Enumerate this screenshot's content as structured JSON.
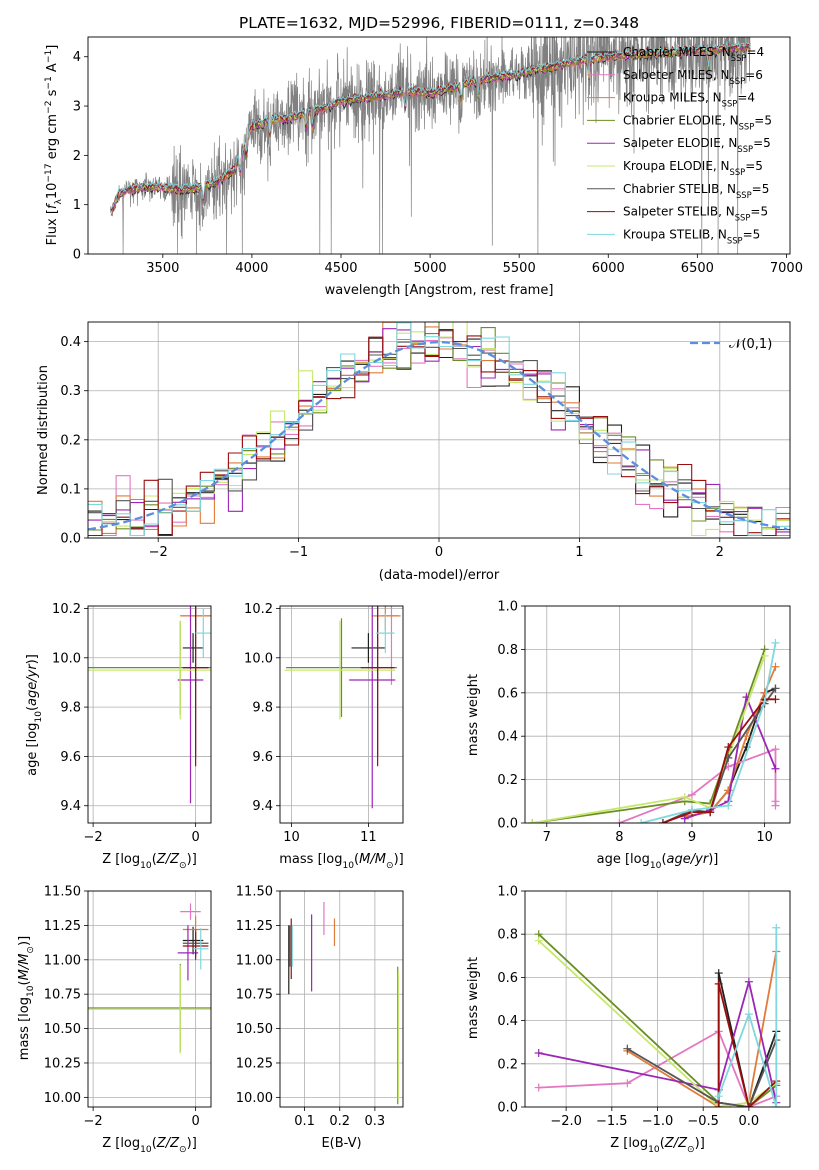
{
  "colors": {
    "Chabrier MILES": "#20201f",
    "Salpeter MILES": "#e377c2",
    "Kroupa MILES": "#e07b39",
    "Chabrier ELODIE": "#6b8e23",
    "Salpeter ELODIE": "#9b26b6",
    "Kroupa ELODIE": "#c5e86c",
    "Chabrier STELIB": "#555555",
    "Salpeter STELIB": "#9a0e0e",
    "Kroupa STELIB": "#7fd7df",
    "data": "#808080",
    "normal": "#5b8ee0"
  },
  "chart_data": [
    {
      "id": "spectrum",
      "type": "line",
      "title": "PLATE=1632, MJD=52996, FIBERID=0111, z=0.348",
      "xlabel": "wavelength [Angstrom, rest frame]",
      "ylabel": "Flux [f_λ 10^-17 erg cm^-2 s^-1 A^-1]",
      "xlim": [
        3080,
        7020
      ],
      "ylim": [
        0,
        4.4
      ],
      "xticks": [
        3500,
        4000,
        4500,
        5000,
        5500,
        6000,
        6500,
        7000
      ],
      "yticks": [
        0,
        1,
        2,
        3,
        4
      ],
      "grid": false,
      "legend_position": "top-right",
      "legend": [
        {
          "pre": "Chabrier MILES, N",
          "sub": "SSP",
          "post": "=4"
        },
        {
          "pre": "Salpeter MILES, N",
          "sub": "SSP",
          "post": "=6"
        },
        {
          "pre": "Kroupa MILES, N",
          "sub": "SSP",
          "post": "=4"
        },
        {
          "pre": "Chabrier ELODIE, N",
          "sub": "SSP",
          "post": "=5"
        },
        {
          "pre": "Salpeter ELODIE, N",
          "sub": "SSP",
          "post": "=5"
        },
        {
          "pre": "Kroupa ELODIE, N",
          "sub": "SSP",
          "post": "=5"
        },
        {
          "pre": "Chabrier STELIB, N",
          "sub": "SSP",
          "post": "=5"
        },
        {
          "pre": "Salpeter STELIB, N",
          "sub": "SSP",
          "post": "=5"
        },
        {
          "pre": "Kroupa STELIB, N",
          "sub": "SSP",
          "post": "=5"
        }
      ],
      "model_continuum": {
        "x": [
          3210,
          3250,
          3300,
          3400,
          3500,
          3600,
          3700,
          3800,
          3900,
          3950,
          4000,
          4100,
          4200,
          4300,
          4400,
          4500,
          4600,
          4700,
          4800,
          4900,
          5000,
          5100,
          5200,
          5300,
          5400,
          5500,
          5600,
          5700,
          5800,
          5900,
          6000,
          6200,
          6400,
          6600,
          6800
        ],
        "y": [
          0.85,
          1.2,
          1.3,
          1.35,
          1.35,
          1.3,
          1.35,
          1.45,
          1.7,
          2.1,
          2.6,
          2.7,
          2.75,
          2.85,
          2.95,
          3.1,
          3.15,
          3.2,
          3.25,
          3.3,
          3.25,
          3.35,
          3.45,
          3.55,
          3.6,
          3.65,
          3.75,
          3.8,
          3.9,
          3.95,
          4.0,
          4.05,
          4.1,
          4.15,
          4.2
        ]
      }
    },
    {
      "id": "residuals",
      "type": "histogram",
      "xlabel": "(data-model)/error",
      "ylabel": "Normed distribution",
      "xlim": [
        -2.5,
        2.5
      ],
      "ylim": [
        0,
        0.44
      ],
      "xticks": [
        -2,
        -1,
        0,
        1,
        2
      ],
      "yticks": [
        0.0,
        0.1,
        0.2,
        0.3,
        0.4
      ],
      "grid": true,
      "legend_position": "top-right",
      "legend": [
        "𝒩(0,1)"
      ]
    },
    {
      "id": "age-vs-Z",
      "type": "scatter",
      "xlabel": "Z [log10(Z/Z⊙)]",
      "ylabel": "age  [log10(age/yr)]",
      "xlim": [
        -2.1,
        0.3
      ],
      "ylim": [
        9.33,
        10.21
      ],
      "xticks": [
        -2,
        0
      ],
      "xtick_labels": [
        "−2",
        "0"
      ],
      "yticks": [
        9.4,
        9.6,
        9.8,
        10.0,
        10.2
      ],
      "grid": true,
      "points": [
        {
          "model": "Chabrier MILES",
          "x": -0.05,
          "xerr": 0.2,
          "y": 10.04,
          "yerr": 0.06
        },
        {
          "model": "Salpeter MILES",
          "x": 0.0,
          "xerr": 0.3,
          "y": 10.17,
          "yerr": 0.06
        },
        {
          "model": "Kroupa MILES",
          "x": 0.0,
          "xerr": 0.3,
          "y": 10.17,
          "yerr": 0.06
        },
        {
          "model": "Chabrier ELODIE",
          "x": -0.3,
          "xerr": 1.8,
          "y": 9.96,
          "yerr": 0.19
        },
        {
          "model": "Salpeter ELODIE",
          "x": -0.1,
          "xerr": 0.25,
          "y": 9.91,
          "yerr": 0.5
        },
        {
          "model": "Kroupa ELODIE",
          "x": -0.3,
          "xerr": 1.85,
          "y": 9.95,
          "yerr": 0.2
        },
        {
          "model": "Chabrier STELIB",
          "x": 0.0,
          "xerr": 0.25,
          "y": 9.96,
          "yerr": 0.36
        },
        {
          "model": "Salpeter STELIB",
          "x": 0.0,
          "xerr": 0.25,
          "y": 9.96,
          "yerr": 0.4
        },
        {
          "model": "Kroupa STELIB",
          "x": 0.15,
          "xerr": 0.15,
          "y": 10.1,
          "yerr": 0.1
        }
      ]
    },
    {
      "id": "age-vs-mass",
      "type": "scatter",
      "xlabel": "mass [log10(M/M⊙)]",
      "ylabel": "",
      "xlim": [
        9.85,
        11.45
      ],
      "ylim": [
        9.33,
        10.21
      ],
      "xticks": [
        10,
        11
      ],
      "yticks": [
        9.4,
        9.6,
        9.8,
        10.0,
        10.2
      ],
      "grid": true,
      "points": [
        {
          "model": "Chabrier MILES",
          "x": 11.0,
          "xerr": 0.22,
          "y": 10.04,
          "yerr": 0.06
        },
        {
          "model": "Salpeter MILES",
          "x": 11.3,
          "xerr": 0.12,
          "y": 10.17,
          "yerr": 0.28
        },
        {
          "model": "Kroupa MILES",
          "x": 11.22,
          "xerr": 0.18,
          "y": 10.17,
          "yerr": 0.06
        },
        {
          "model": "Chabrier ELODIE",
          "x": 10.65,
          "xerr": 0.72,
          "y": 9.96,
          "yerr": 0.2
        },
        {
          "model": "Salpeter ELODIE",
          "x": 11.05,
          "xerr": 0.3,
          "y": 9.91,
          "yerr": 0.52
        },
        {
          "model": "Kroupa ELODIE",
          "x": 10.63,
          "xerr": 0.72,
          "y": 9.95,
          "yerr": 0.2
        },
        {
          "model": "Chabrier STELIB",
          "x": 11.12,
          "xerr": 0.05,
          "y": 9.96,
          "yerr": 0.36
        },
        {
          "model": "Salpeter STELIB",
          "x": 11.12,
          "xerr": 0.22,
          "y": 9.96,
          "yerr": 0.4
        },
        {
          "model": "Kroupa STELIB",
          "x": 11.22,
          "xerr": 0.12,
          "y": 10.1,
          "yerr": 0.08
        }
      ]
    },
    {
      "id": "mass-weight-vs-age",
      "type": "line",
      "xlabel": "age  [log10(age/yr)]",
      "ylabel": "mass weight",
      "xlim": [
        6.7,
        10.35
      ],
      "ylim": [
        0,
        1
      ],
      "xticks": [
        7,
        8,
        9,
        10
      ],
      "yticks": [
        0.0,
        0.2,
        0.4,
        0.6,
        0.8,
        1.0
      ],
      "grid": true,
      "series": [
        {
          "model": "Chabrier MILES",
          "x": [
            8.9,
            9.25,
            9.5,
            9.75,
            10.0,
            10.15
          ],
          "y": [
            0.03,
            0.05,
            0.15,
            0.35,
            0.6,
            0.62
          ]
        },
        {
          "model": "Salpeter MILES",
          "x": [
            8.0,
            9.0,
            9.5,
            10.15,
            10.15,
            10.15
          ],
          "y": [
            0.0,
            0.13,
            0.26,
            0.34,
            0.1,
            0.08
          ]
        },
        {
          "model": "Kroupa MILES",
          "x": [
            8.9,
            9.25,
            9.5,
            9.75,
            10.0,
            10.15
          ],
          "y": [
            0.03,
            0.05,
            0.15,
            0.4,
            0.6,
            0.72
          ]
        },
        {
          "model": "Chabrier ELODIE",
          "x": [
            6.8,
            8.9,
            9.25,
            10.0
          ],
          "y": [
            0.0,
            0.1,
            0.09,
            0.8
          ]
        },
        {
          "model": "Salpeter ELODIE",
          "x": [
            8.9,
            9.25,
            9.5,
            9.75,
            10.15
          ],
          "y": [
            0.02,
            0.06,
            0.1,
            0.58,
            0.25
          ]
        },
        {
          "model": "Kroupa ELODIE",
          "x": [
            6.8,
            8.9,
            9.25,
            10.0
          ],
          "y": [
            0.0,
            0.12,
            0.07,
            0.77
          ]
        },
        {
          "model": "Chabrier STELIB",
          "x": [
            8.6,
            9.0,
            9.25,
            9.5,
            10.0,
            10.15
          ],
          "y": [
            0.0,
            0.06,
            0.05,
            0.3,
            0.55,
            0.62
          ]
        },
        {
          "model": "Salpeter STELIB",
          "x": [
            8.6,
            9.0,
            9.25,
            9.5,
            10.0,
            10.15
          ],
          "y": [
            0.0,
            0.05,
            0.05,
            0.35,
            0.57,
            0.57
          ]
        },
        {
          "model": "Kroupa STELIB",
          "x": [
            8.3,
            9.0,
            9.5,
            10.0,
            10.15
          ],
          "y": [
            0.0,
            0.06,
            0.08,
            0.56,
            0.83
          ]
        }
      ]
    },
    {
      "id": "mass-vs-Z",
      "type": "scatter",
      "xlabel": "Z [log10(Z/Z⊙)]",
      "ylabel": "mass [log10(M/M⊙)]",
      "xlim": [
        -2.1,
        0.3
      ],
      "ylim": [
        9.93,
        11.5
      ],
      "xticks": [
        -2,
        0
      ],
      "xtick_labels": [
        "−2",
        "0"
      ],
      "yticks": [
        10.0,
        10.25,
        10.5,
        10.75,
        11.0,
        11.25,
        11.5
      ],
      "grid": true,
      "points": [
        {
          "model": "Chabrier MILES",
          "x": -0.05,
          "xerr": 0.2,
          "y": 11.14,
          "yerr": 0.1
        },
        {
          "model": "Salpeter MILES",
          "x": -0.1,
          "xerr": 0.2,
          "y": 11.35,
          "yerr": 0.06
        },
        {
          "model": "Kroupa MILES",
          "x": 0.0,
          "xerr": 0.25,
          "y": 11.22,
          "yerr": 0.1
        },
        {
          "model": "Chabrier ELODIE",
          "x": -0.3,
          "xerr": 1.8,
          "y": 10.65,
          "yerr": 0.32
        },
        {
          "model": "Salpeter ELODIE",
          "x": -0.15,
          "xerr": 0.2,
          "y": 11.05,
          "yerr": 0.2
        },
        {
          "model": "Kroupa ELODIE",
          "x": -0.3,
          "xerr": 1.85,
          "y": 10.64,
          "yerr": 0.32
        },
        {
          "model": "Chabrier STELIB",
          "x": 0.0,
          "xerr": 0.25,
          "y": 11.12,
          "yerr": 0.1
        },
        {
          "model": "Salpeter STELIB",
          "x": 0.0,
          "xerr": 0.25,
          "y": 11.1,
          "yerr": 0.1
        },
        {
          "model": "Kroupa STELIB",
          "x": 0.1,
          "xerr": 0.15,
          "y": 11.08,
          "yerr": 0.15
        }
      ]
    },
    {
      "id": "mass-vs-EBV",
      "type": "scatter",
      "xlabel": "E(B-V)",
      "ylabel": "",
      "xlim": [
        0.03,
        0.38
      ],
      "ylim": [
        9.93,
        11.5
      ],
      "xticks": [
        0.1,
        0.2,
        0.3
      ],
      "yticks": [
        10.0,
        10.25,
        10.5,
        10.75,
        11.0,
        11.25,
        11.5
      ],
      "grid": true,
      "points": [
        {
          "model": "Chabrier MILES",
          "x": 0.055,
          "y": 11.0,
          "yerr": 0.25
        },
        {
          "model": "Salpeter MILES",
          "x": 0.155,
          "y": 11.3,
          "yerr": 0.12
        },
        {
          "model": "Kroupa MILES",
          "x": 0.185,
          "y": 11.2,
          "yerr": 0.1
        },
        {
          "model": "Chabrier ELODIE",
          "x": 0.365,
          "y": 10.45,
          "yerr": 0.5
        },
        {
          "model": "Salpeter ELODIE",
          "x": 0.12,
          "y": 11.05,
          "yerr": 0.28
        },
        {
          "model": "Kroupa ELODIE",
          "x": 0.367,
          "y": 10.45,
          "yerr": 0.47
        },
        {
          "model": "Chabrier STELIB",
          "x": 0.058,
          "y": 11.1,
          "yerr": 0.15
        },
        {
          "model": "Salpeter STELIB",
          "x": 0.062,
          "y": 11.08,
          "yerr": 0.22
        },
        {
          "model": "Kroupa STELIB",
          "x": 0.065,
          "y": 11.1,
          "yerr": 0.15
        }
      ]
    },
    {
      "id": "mass-weight-vs-Z",
      "type": "line",
      "xlabel": "Z [log10(Z/Z⊙)]",
      "ylabel": "mass weight",
      "xlim": [
        -2.45,
        0.45
      ],
      "ylim": [
        0,
        1
      ],
      "xticks": [
        -2.0,
        -1.5,
        -1.0,
        -0.5,
        0.0
      ],
      "xtick_labels": [
        "−2.0",
        "−1.5",
        "−1.0",
        "−0.5",
        "0.0"
      ],
      "yticks": [
        0.0,
        0.2,
        0.4,
        0.6,
        0.8,
        1.0
      ],
      "grid": true,
      "series": [
        {
          "model": "Chabrier MILES",
          "x": [
            -0.33,
            -0.33,
            0.0,
            0.3
          ],
          "y": [
            0.0,
            0.62,
            0.0,
            0.35
          ]
        },
        {
          "model": "Salpeter MILES",
          "x": [
            -2.3,
            -1.33,
            -0.33,
            0.0,
            0.3
          ],
          "y": [
            0.09,
            0.11,
            0.35,
            0.0,
            0.05
          ]
        },
        {
          "model": "Kroupa MILES",
          "x": [
            -1.33,
            -0.33,
            0.0,
            0.3
          ],
          "y": [
            0.26,
            0.0,
            0.02,
            0.72
          ]
        },
        {
          "model": "Chabrier ELODIE",
          "x": [
            -2.3,
            -0.33,
            0.0,
            0.3
          ],
          "y": [
            0.8,
            0.02,
            0.0,
            0.1
          ]
        },
        {
          "model": "Salpeter ELODIE",
          "x": [
            -2.3,
            -0.33,
            0.0,
            0.3
          ],
          "y": [
            0.25,
            0.08,
            0.58,
            0.02
          ]
        },
        {
          "model": "Kroupa ELODIE",
          "x": [
            -2.3,
            -0.33,
            0.0,
            0.3
          ],
          "y": [
            0.77,
            0.0,
            0.02,
            0.11
          ]
        },
        {
          "model": "Chabrier STELIB",
          "x": [
            -1.33,
            -0.33,
            0.0,
            0.3
          ],
          "y": [
            0.27,
            0.02,
            0.0,
            0.31
          ]
        },
        {
          "model": "Salpeter STELIB",
          "x": [
            -0.33,
            -0.33,
            0.0,
            0.3
          ],
          "y": [
            0.0,
            0.57,
            0.0,
            0.12
          ]
        },
        {
          "model": "Kroupa STELIB",
          "x": [
            -0.33,
            0.0,
            0.3,
            0.3
          ],
          "y": [
            0.05,
            0.43,
            0.0,
            0.83
          ]
        }
      ]
    }
  ]
}
